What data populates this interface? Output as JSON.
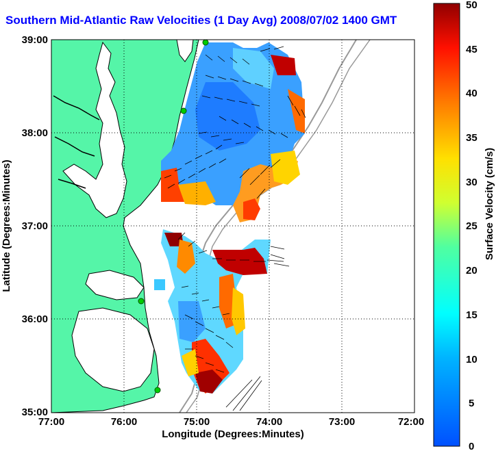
{
  "title": "Southern Mid-Atlantic Raw Velocities (1 Day Avg) 2008/07/02 1400 GMT",
  "map": {
    "xlabel": "Longitude (Degrees:Minutes)",
    "ylabel": "Latitude (Degrees:Minutes)",
    "x_ticks": [
      "77:00",
      "76:00",
      "75:00",
      "74:00",
      "73:00",
      "72:00"
    ],
    "y_ticks": [
      "39:00",
      "38:00",
      "37:00",
      "36:00",
      "35:00"
    ],
    "lon_range": [
      -77,
      -72
    ],
    "lat_range": [
      35,
      39
    ],
    "grid": "dotted",
    "colors": {
      "land": "#55f5a8",
      "ocean": "#ffffff",
      "coast": "#000000",
      "bathymetry": "#999999",
      "stations": "#00cc00"
    }
  },
  "colorbar": {
    "label": "Surface Velocity (cm/s)",
    "ticks": [
      "50",
      "45",
      "40",
      "35",
      "30",
      "25",
      "20",
      "15",
      "10",
      "5",
      "0"
    ],
    "range": [
      0,
      50
    ],
    "colormap": "jet"
  }
}
